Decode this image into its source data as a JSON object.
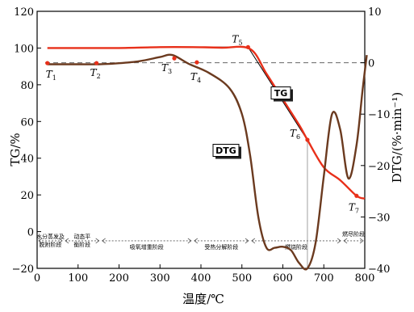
{
  "chart_data": {
    "type": "line",
    "title": "",
    "xlabel": "温度/℃",
    "ylabel_left": "TG/%",
    "ylabel_right": "DTG/(%·min⁻¹)",
    "xlim": [
      0,
      800
    ],
    "ylim_left": [
      -20,
      120
    ],
    "ylim_right": [
      -40,
      10
    ],
    "x_ticks": [
      "0",
      "100",
      "200",
      "300",
      "400",
      "500",
      "600",
      "700",
      "800"
    ],
    "y_left_ticks": [
      "−20",
      "0",
      "20",
      "40",
      "60",
      "80",
      "100",
      "120"
    ],
    "y_right_ticks": [
      "10",
      "0",
      "−10",
      "−20",
      "−30",
      "−40"
    ],
    "grid": false,
    "reference_line_dtg": 0,
    "series": [
      {
        "name": "TG",
        "axis": "left",
        "color": "#e8301a",
        "x": [
          25,
          100,
          200,
          300,
          380,
          450,
          520,
          560,
          600,
          640,
          660,
          700,
          740,
          780,
          800
        ],
        "y": [
          100,
          100,
          100,
          100.5,
          100.5,
          100.2,
          99.5,
          86,
          72,
          58,
          50,
          35,
          28,
          19.5,
          18
        ]
      },
      {
        "name": "DTG",
        "axis": "right",
        "color": "#6b3a1f",
        "x": [
          25,
          100,
          150,
          200,
          250,
          300,
          330,
          370,
          420,
          470,
          500,
          520,
          540,
          560,
          580,
          600,
          620,
          640,
          660,
          680,
          700,
          720,
          740,
          760,
          780,
          795,
          805
        ],
        "y": [
          -0.3,
          -0.3,
          -0.3,
          -0.1,
          0.3,
          1.1,
          1.5,
          -0.2,
          -2,
          -5,
          -10,
          -18,
          -30,
          -36,
          -36,
          -35.8,
          -36.5,
          -39,
          -40,
          -35,
          -22,
          -10,
          -13,
          -22.5,
          -16,
          -5,
          1.5
        ]
      }
    ],
    "markers": [
      {
        "name": "T1",
        "x": 25,
        "y": 91.8,
        "axis": "left"
      },
      {
        "name": "T2",
        "x": 145,
        "y": 91.8,
        "axis": "left"
      },
      {
        "name": "T3",
        "x": 335,
        "y": 94.4,
        "axis": "left"
      },
      {
        "name": "T4",
        "x": 390,
        "y": 92.2,
        "axis": "left"
      },
      {
        "name": "T5",
        "x": 515,
        "y": 100.5,
        "axis": "left"
      },
      {
        "name": "T6",
        "x": 660,
        "y": 50,
        "axis": "left"
      },
      {
        "name": "T7",
        "x": 780,
        "y": 19.5,
        "axis": "left"
      }
    ],
    "stages": [
      {
        "label": "水分蒸发及脱附阶段",
        "x_start": 0,
        "x_end": 65
      },
      {
        "label": "动态平衡阶段",
        "x_start": 65,
        "x_end": 155
      },
      {
        "label": "吸氧增重阶段",
        "x_start": 155,
        "x_end": 380
      },
      {
        "label": "受热分解阶段",
        "x_start": 380,
        "x_end": 520
      },
      {
        "label": "燃烧阶段",
        "x_start": 520,
        "x_end": 745
      },
      {
        "label": "燃尽阶段",
        "x_start": 745,
        "x_end": 800
      }
    ],
    "series_labels": {
      "TG": "TG",
      "DTG": "DTG"
    }
  }
}
